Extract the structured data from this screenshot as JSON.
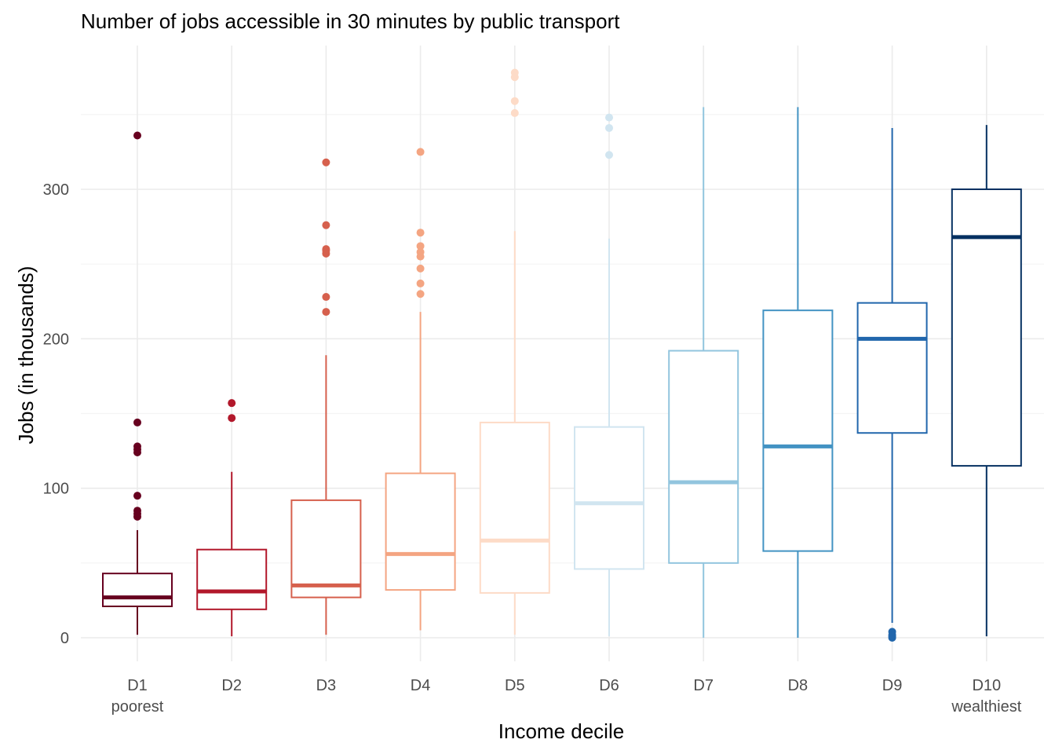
{
  "chart_data": {
    "type": "boxplot",
    "title": "Number of jobs accessible in 30 minutes by public transport",
    "xlabel": "Income decile",
    "ylabel": "Jobs (in thousands)",
    "ylim": [
      -15,
      385
    ],
    "yticks": [
      0,
      100,
      200,
      300
    ],
    "grid": true,
    "categories": [
      {
        "label": "D1",
        "sublabel": "poorest"
      },
      {
        "label": "D2",
        "sublabel": ""
      },
      {
        "label": "D3",
        "sublabel": ""
      },
      {
        "label": "D4",
        "sublabel": ""
      },
      {
        "label": "D5",
        "sublabel": ""
      },
      {
        "label": "D6",
        "sublabel": ""
      },
      {
        "label": "D7",
        "sublabel": ""
      },
      {
        "label": "D8",
        "sublabel": ""
      },
      {
        "label": "D9",
        "sublabel": ""
      },
      {
        "label": "D10",
        "sublabel": "wealthiest"
      }
    ],
    "boxes": [
      {
        "color": "#67001f",
        "whisker_low": 2,
        "q1": 21,
        "median": 27,
        "q3": 43,
        "whisker_high": 72,
        "outliers": [
          81,
          83,
          85,
          95,
          124,
          126,
          128,
          144,
          336
        ]
      },
      {
        "color": "#b2182b",
        "whisker_low": 1,
        "q1": 19,
        "median": 31,
        "q3": 59,
        "whisker_high": 111,
        "outliers": [
          147,
          157
        ]
      },
      {
        "color": "#d6604d",
        "whisker_low": 2,
        "q1": 27,
        "median": 35,
        "q3": 92,
        "whisker_high": 189,
        "outliers": [
          218,
          228,
          257,
          259,
          260,
          276,
          318
        ]
      },
      {
        "color": "#f4a582",
        "whisker_low": 5,
        "q1": 32,
        "median": 56,
        "q3": 110,
        "whisker_high": 218,
        "outliers": [
          230,
          237,
          247,
          255,
          258,
          262,
          271,
          325
        ]
      },
      {
        "color": "#fddbc7",
        "whisker_low": 2,
        "q1": 30,
        "median": 65,
        "q3": 144,
        "whisker_high": 272,
        "outliers": [
          351,
          359,
          375,
          378
        ]
      },
      {
        "color": "#d1e5f0",
        "whisker_low": 1,
        "q1": 46,
        "median": 90,
        "q3": 141,
        "whisker_high": 267,
        "outliers": [
          323,
          341,
          348
        ]
      },
      {
        "color": "#92c5de",
        "whisker_low": 0,
        "q1": 50,
        "median": 104,
        "q3": 192,
        "whisker_high": 355,
        "outliers": []
      },
      {
        "color": "#4393c3",
        "whisker_low": 0,
        "q1": 58,
        "median": 128,
        "q3": 219,
        "whisker_high": 355,
        "outliers": []
      },
      {
        "color": "#2166ac",
        "whisker_low": 10,
        "q1": 137,
        "median": 200,
        "q3": 224,
        "whisker_high": 341,
        "outliers": [
          0,
          1,
          2,
          4
        ]
      },
      {
        "color": "#053061",
        "whisker_low": 1,
        "q1": 115,
        "median": 268,
        "q3": 300,
        "whisker_high": 343,
        "outliers": []
      }
    ]
  }
}
